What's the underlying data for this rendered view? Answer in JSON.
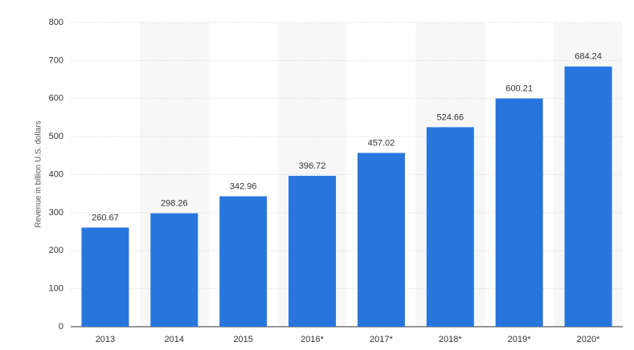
{
  "chart_data": {
    "type": "bar",
    "y_label": "Revenue in billion U.S. dollars",
    "categories": [
      "2013",
      "2014",
      "2015",
      "2016*",
      "2017*",
      "2018*",
      "2019*",
      "2020*"
    ],
    "values": [
      260.67,
      298.26,
      342.96,
      396.72,
      457.02,
      524.66,
      600.21,
      684.24
    ],
    "color": "#2876dd",
    "ylim": [
      0,
      800
    ],
    "yticks": [
      0,
      100,
      200,
      300,
      400,
      500,
      600,
      700,
      800
    ],
    "grid": true
  }
}
